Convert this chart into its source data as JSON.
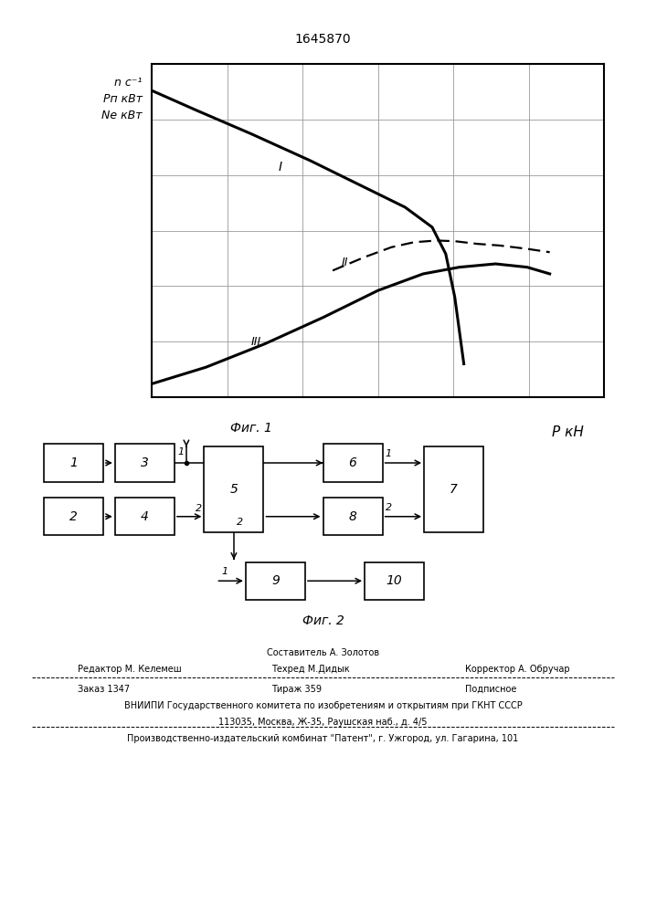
{
  "title": "1645870",
  "bg_color": "#ffffff",
  "curve1_x": [
    0.0,
    0.1,
    0.22,
    0.35,
    0.47,
    0.56,
    0.62,
    0.65,
    0.67,
    0.69
  ],
  "curve1_y": [
    0.92,
    0.86,
    0.79,
    0.71,
    0.63,
    0.57,
    0.51,
    0.43,
    0.3,
    0.1
  ],
  "curve2_x": [
    0.4,
    0.47,
    0.53,
    0.58,
    0.63,
    0.67,
    0.72,
    0.77,
    0.83,
    0.88
  ],
  "curve2_y": [
    0.38,
    0.42,
    0.45,
    0.465,
    0.47,
    0.468,
    0.46,
    0.455,
    0.445,
    0.435
  ],
  "curve3_x": [
    0.0,
    0.12,
    0.25,
    0.38,
    0.5,
    0.6,
    0.68,
    0.76,
    0.83,
    0.88
  ],
  "curve3_y": [
    0.04,
    0.09,
    0.16,
    0.24,
    0.32,
    0.37,
    0.39,
    0.4,
    0.39,
    0.37
  ],
  "fig1_label": "Фиг. 1",
  "fig2_label": "Фиг. 2",
  "xlabel": "PкН",
  "ylabel1": "n с⁻¹",
  "ylabel2": "Pп кВт",
  "ylabel3": "Nе кВт",
  "footer_composer": "Составитель А. Золотов",
  "footer_editor": "Редактор М. Келемеш",
  "footer_techred": "Техред М.Дидык",
  "footer_corrector": "Корректор А. Обручар",
  "footer_order": "Заказ 1347",
  "footer_tirazh": "Тираж 359",
  "footer_podp": "Подписное",
  "footer_vniipи": "ВНИИПИ Государственного комитета по изобретениям и открытиям при ГКНТ СССР",
  "footer_addr": "113035, Москва, Ж-35, Раушская наб., д. 4/5",
  "footer_patent": "Производственно-издательский комбинат \"Патент\", г. Ужгород, ул. Гагарина, 101"
}
